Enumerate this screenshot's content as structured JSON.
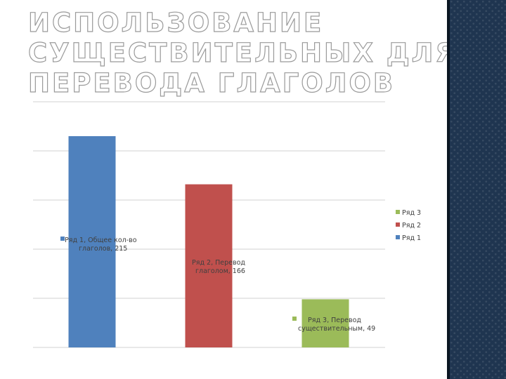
{
  "title_lines": [
    "ИСПОЛЬЗОВАНИЕ",
    "СУЩЕСТВИТЕЛЬНЫХ ДЛЯ",
    "ПЕРЕВОДА ГЛАГОЛОВ"
  ],
  "colors": {
    "series1": "#4f81bd",
    "series2": "#c0504d",
    "series3": "#9bbb59",
    "grid": "#d0d0d0",
    "sidebar": "#1f3550"
  },
  "chart_data": {
    "type": "bar",
    "ylim": [
      0,
      250
    ],
    "grid": true,
    "legend_position": "right",
    "series": [
      {
        "name": "Ряд 1",
        "value": 215,
        "label_lines": [
          "Ряд 1, Общее кол-во",
          "глаголов, 215"
        ]
      },
      {
        "name": "Ряд 2",
        "value": 166,
        "label_lines": [
          "Ряд 2, Перевод",
          "глаголом, 166"
        ]
      },
      {
        "name": "Ряд 3",
        "value": 49,
        "label_lines": [
          "Ряд 3, Перевод",
          "существительным, 49"
        ]
      }
    ],
    "legend": [
      "Ряд 3",
      "Ряд 2",
      "Ряд 1"
    ]
  }
}
